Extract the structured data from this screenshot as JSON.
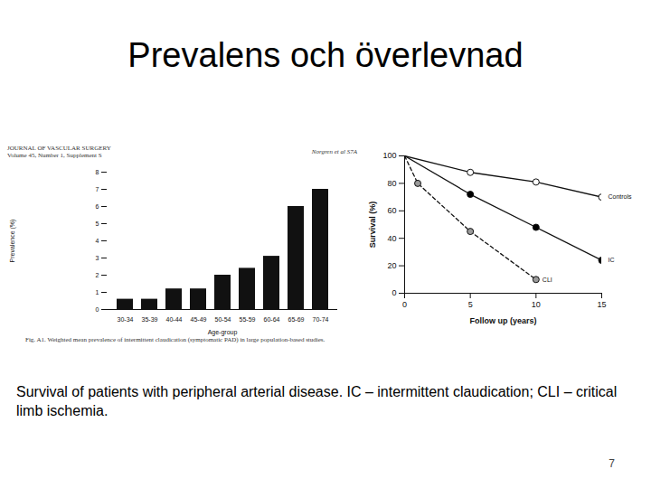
{
  "slide": {
    "title": "Prevalens och överlevnad",
    "caption": "Survival of patients with peripheral arterial disease. IC – intermittent claudication; CLI – critical limb ischemia.",
    "page": 7
  },
  "chart_data": [
    {
      "type": "bar",
      "source_header": [
        "JOURNAL OF VASCULAR SURGERY",
        "Volume 45, Number 1, Supplement S"
      ],
      "source_right": "Norgren et al S7A",
      "caption": "Fig. A1. Weighted mean prevalence of intermittent claudication (symptomatic PAD) in large population-based studies.",
      "x_label": "Age-group",
      "y_label": "Prevalence (%)",
      "categories": [
        "30-34",
        "35-39",
        "40-44",
        "45-49",
        "50-54",
        "55-59",
        "60-64",
        "65-69",
        "70-74"
      ],
      "values": [
        0.6,
        0.6,
        1.2,
        1.2,
        2.0,
        2.4,
        3.1,
        6.0,
        7.0
      ],
      "color": "#111111",
      "ylim": [
        0,
        8
      ],
      "yticks": [
        0,
        1,
        2,
        3,
        4,
        5,
        6,
        7,
        8
      ]
    },
    {
      "type": "line",
      "x_label": "Follow up (years)",
      "y_label": "Survival (%)",
      "xlim": [
        0,
        15
      ],
      "xticks": [
        0,
        5,
        10,
        15
      ],
      "ylim": [
        0,
        100
      ],
      "yticks": [
        0,
        20,
        40,
        60,
        80,
        100
      ],
      "series": [
        {
          "name": "Controls",
          "color": "#ffffff",
          "marker": "circle",
          "line_style": "solid",
          "x": [
            0,
            5,
            10,
            15
          ],
          "values": [
            100,
            88,
            81,
            70
          ]
        },
        {
          "name": "IC",
          "color": "#000000",
          "marker": "circle",
          "line_style": "solid",
          "x": [
            0,
            5,
            10,
            15
          ],
          "values": [
            100,
            72,
            48,
            24
          ]
        },
        {
          "name": "CLI",
          "color": "#9a9a9a",
          "marker": "circle",
          "line_style": "dashed",
          "x": [
            0,
            1,
            5,
            10
          ],
          "values": [
            100,
            80,
            45,
            10
          ]
        }
      ]
    }
  ]
}
